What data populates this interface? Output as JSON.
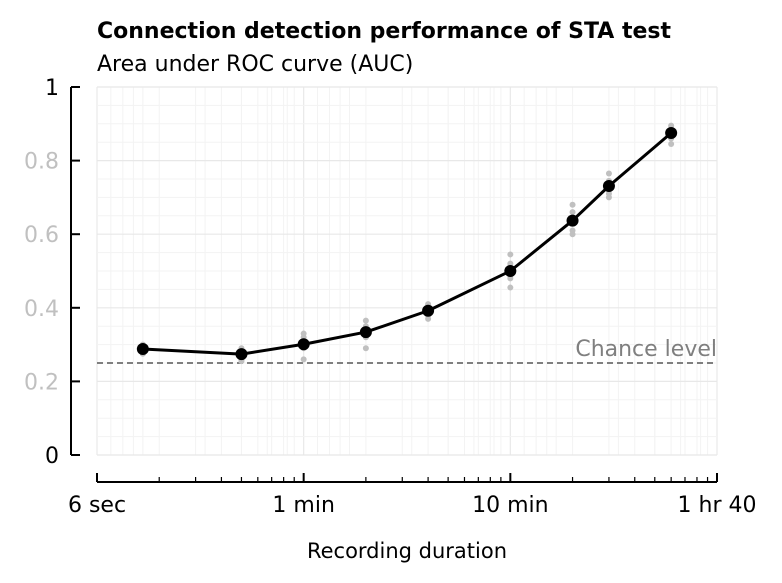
{
  "chart_data": {
    "type": "line",
    "title": "Connection detection performance of STA test",
    "subtitle": "Area under ROC curve (AUC)",
    "xlabel": "Recording duration",
    "ylabel": "",
    "x_scale": "log",
    "x_unit": "seconds",
    "xlim": [
      6,
      6000
    ],
    "ylim": [
      0,
      1
    ],
    "grid": true,
    "xticks": [
      {
        "value": 6,
        "label": "6 sec"
      },
      {
        "value": 60,
        "label": "1 min"
      },
      {
        "value": 600,
        "label": "10 min"
      },
      {
        "value": 6000,
        "label": "1 hr 40"
      }
    ],
    "yticks": [
      {
        "value": 0,
        "label": "0"
      },
      {
        "value": 0.2,
        "label": "0.2"
      },
      {
        "value": 0.4,
        "label": "0.4"
      },
      {
        "value": 0.6,
        "label": "0.6"
      },
      {
        "value": 0.8,
        "label": "0.8"
      },
      {
        "value": 1,
        "label": "1"
      }
    ],
    "chance_level": {
      "value": 0.25,
      "label": "Chance level"
    },
    "series": [
      {
        "x": [
          10,
          30,
          60,
          120,
          240,
          600,
          1200,
          1800,
          3600
        ],
        "values": [
          0.288,
          0.274,
          0.301,
          0.334,
          0.392,
          0.5,
          0.637,
          0.731,
          0.875
        ]
      }
    ],
    "samples": [
      {
        "x": 10,
        "values": [
          0.3,
          0.295,
          0.285,
          0.28,
          0.275
        ]
      },
      {
        "x": 30,
        "values": [
          0.29,
          0.28,
          0.27,
          0.26,
          0.255
        ]
      },
      {
        "x": 60,
        "values": [
          0.33,
          0.32,
          0.3,
          0.29,
          0.26
        ]
      },
      {
        "x": 120,
        "values": [
          0.365,
          0.35,
          0.335,
          0.32,
          0.29
        ]
      },
      {
        "x": 240,
        "values": [
          0.41,
          0.4,
          0.39,
          0.38,
          0.37
        ]
      },
      {
        "x": 600,
        "values": [
          0.545,
          0.52,
          0.5,
          0.48,
          0.455
        ]
      },
      {
        "x": 1200,
        "values": [
          0.68,
          0.66,
          0.64,
          0.61,
          0.6
        ]
      },
      {
        "x": 1800,
        "values": [
          0.765,
          0.745,
          0.73,
          0.71,
          0.7
        ]
      },
      {
        "x": 3600,
        "values": [
          0.895,
          0.885,
          0.875,
          0.86,
          0.845
        ]
      }
    ],
    "colors": {
      "line": "#000000",
      "samples": "#c0c0c0",
      "chance": "#7f7f7f",
      "ytick_labels": "#c0c0c0",
      "grid_major": "#e8e8e8",
      "grid_minor": "#f3f3f3"
    }
  }
}
